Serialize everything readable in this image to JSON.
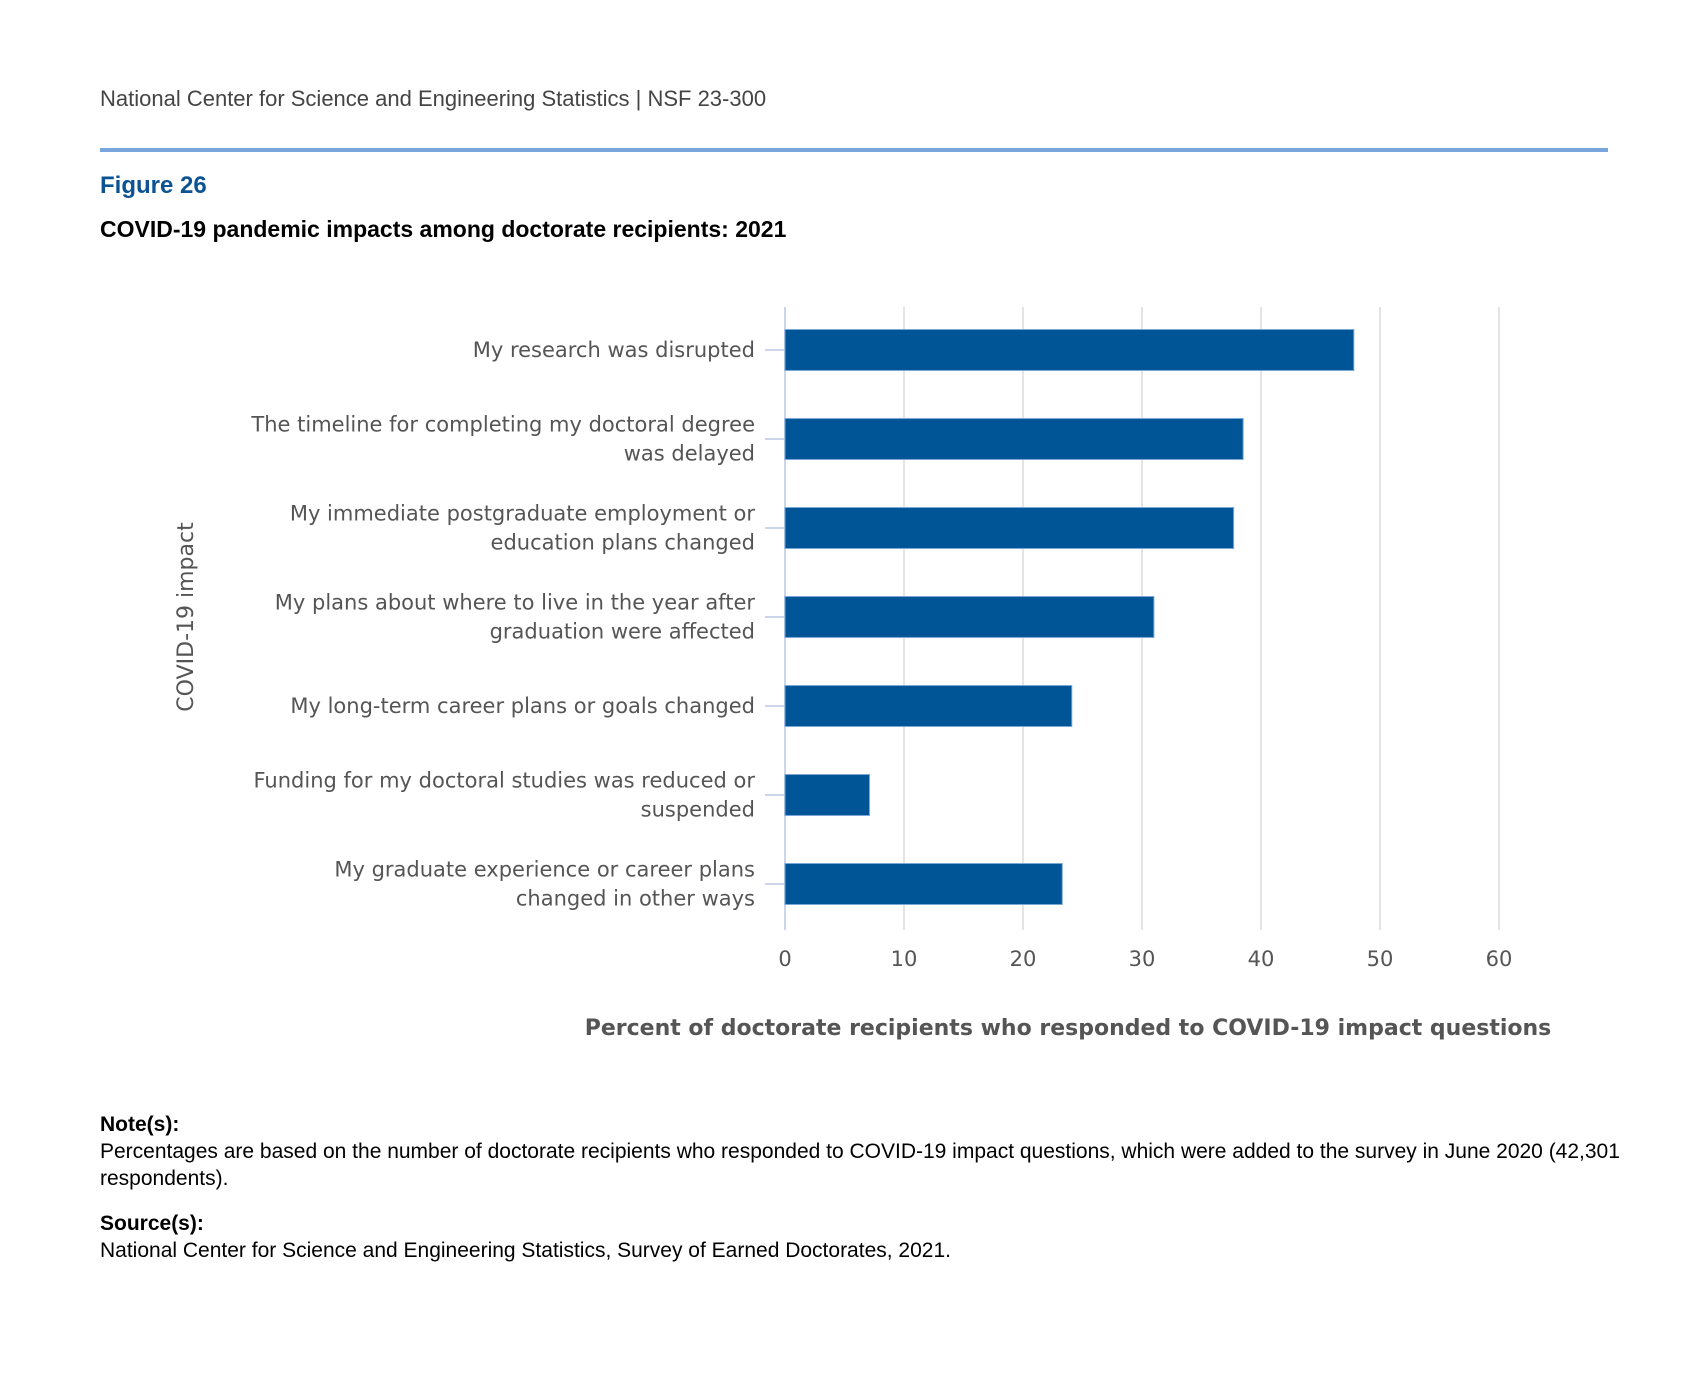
{
  "header": {
    "text": "National Center for Science and Engineering Statistics  |  NSF 23-300"
  },
  "figure": {
    "label": "Figure 26",
    "title": "COVID-19 pandemic impacts among doctorate recipients: 2021"
  },
  "colors": {
    "bar": "#005596",
    "bar_edge": "#7aa7d6",
    "grid": "#e4e4e4",
    "axis": "#ccd6eb",
    "rule": "#78a6dc",
    "figure_label": "#0c5394"
  },
  "chart_data": {
    "type": "bar",
    "orientation": "horizontal",
    "title": "COVID-19 pandemic impacts among doctorate recipients: 2021",
    "xlabel": "Percent of doctorate recipients who responded to COVID-19 impact questions",
    "ylabel": "COVID-19 impact",
    "xlim": [
      0,
      60
    ],
    "xticks": [
      0,
      10,
      20,
      30,
      40,
      50,
      60
    ],
    "grid": true,
    "legend": "none",
    "categories": [
      [
        "My research was disrupted"
      ],
      [
        "The timeline for completing my doctoral degree",
        "was delayed"
      ],
      [
        "My immediate postgraduate employment or",
        "education plans changed"
      ],
      [
        "My plans about where to live in the year after",
        "graduation were affected"
      ],
      [
        "My long-term career plans or goals changed"
      ],
      [
        "Funding for my doctoral studies was reduced or",
        "suspended"
      ],
      [
        "My graduate experience or career plans",
        "changed in other ways"
      ]
    ],
    "values": [
      47.8,
      38.5,
      37.7,
      31.0,
      24.1,
      7.1,
      23.3
    ]
  },
  "notes": {
    "note_heading": "Note(s):",
    "note_text": "Percentages are based on the number of doctorate recipients who responded to COVID-19 impact questions, which were added to the survey in June 2020 (42,301 respondents).",
    "source_heading": "Source(s):",
    "source_text": "National Center for Science and Engineering Statistics, Survey of Earned Doctorates, 2021."
  }
}
